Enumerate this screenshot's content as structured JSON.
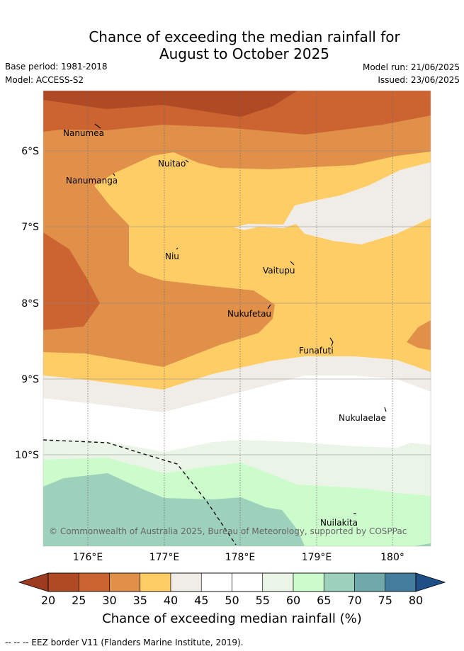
{
  "title": {
    "line1": "Chance of exceeding the median rainfall for",
    "line2": "August to October 2025"
  },
  "meta": {
    "base_period": "Base period: 1981-2018",
    "model": "Model: ACCESS-S2",
    "model_run": "Model run: 21/06/2025",
    "issued": "Issued: 23/06/2025"
  },
  "map": {
    "lat_labels": [
      "6°S",
      "7°S",
      "8°S",
      "9°S",
      "10°S"
    ],
    "lon_labels": [
      "176°E",
      "177°E",
      "178°E",
      "179°E",
      "180°"
    ],
    "places": [
      "Nanumea",
      "Nuitao",
      "Nanumanga",
      "Niu",
      "Vaitupu",
      "Nukufetau",
      "Funafuti",
      "Nukulaelae",
      "Nuilakita"
    ],
    "copyright": "© Commonwealth of Australia 2025, Bureau of Meteorology, supported by COSPPac"
  },
  "colorbar": {
    "ticks": [
      "20",
      "25",
      "30",
      "35",
      "40",
      "45",
      "50",
      "55",
      "60",
      "65",
      "70",
      "75",
      "80"
    ],
    "colors": [
      "#b04a25",
      "#cb6431",
      "#e1904a",
      "#ffcd66",
      "#f0ece7",
      "#ffffff",
      "#ffffff",
      "#eaf5e8",
      "#ccfccc",
      "#9dd1bb",
      "#70a9aa",
      "#447c9d"
    ],
    "low_extend_color": "#9c3b1f",
    "high_extend_color": "#1f4f87",
    "label": "Chance of exceeding median rainfall (%)"
  },
  "footnote": "--  --  -- EEZ border V11 (Flanders Marine Institute, 2019)."
}
